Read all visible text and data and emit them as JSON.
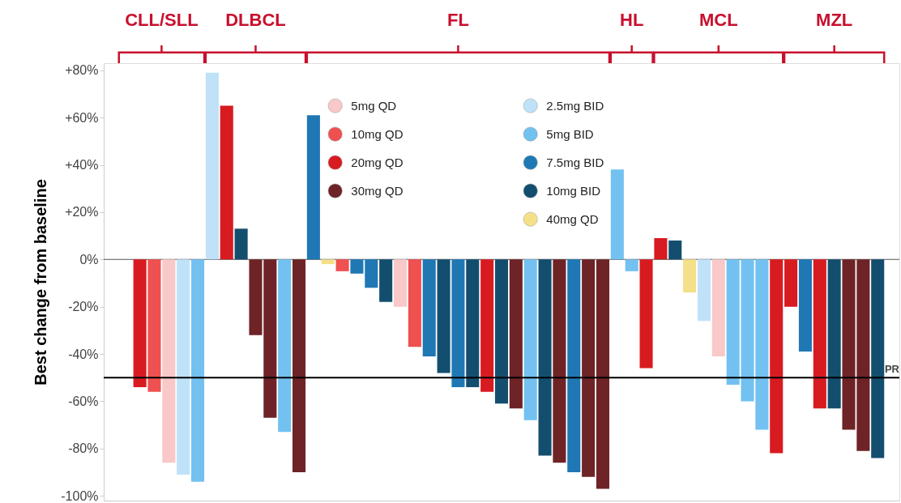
{
  "chart_data": {
    "type": "bar",
    "ylabel": "Best change from baseline",
    "categories": [
      null,
      null,
      null,
      null,
      null,
      null,
      null,
      null,
      null,
      null,
      null,
      null,
      null,
      null,
      null,
      null,
      null,
      null,
      null,
      null,
      null,
      null,
      null,
      null,
      null,
      null,
      null,
      null,
      null,
      null,
      null,
      null,
      null,
      null,
      null,
      null,
      null,
      null,
      null,
      null,
      null,
      null,
      null,
      null,
      null,
      null,
      null,
      null,
      null,
      null,
      null,
      null,
      null,
      null,
      null
    ],
    "ylim": [
      -102,
      83
    ],
    "yticks": [
      {
        "value": 80,
        "label": "+80%"
      },
      {
        "value": 60,
        "label": "+60%"
      },
      {
        "value": 40,
        "label": "+40%"
      },
      {
        "value": 20,
        "label": "+20%"
      },
      {
        "value": 0,
        "label": "0%"
      },
      {
        "value": -20,
        "label": "-20%"
      },
      {
        "value": -40,
        "label": "-40%"
      },
      {
        "value": -60,
        "label": "-60%"
      },
      {
        "value": -80,
        "label": "-80%"
      },
      {
        "value": -100,
        "label": "-100%"
      }
    ],
    "legend": "top",
    "annotations": [
      "CLL/SLL",
      "DLBCL",
      "FL",
      "HL",
      "MCL",
      "MZL"
    ],
    "ref_lines": [
      {
        "axis": "y",
        "value": -50,
        "label": "PR",
        "color": "#000000"
      }
    ],
    "series": [
      {
        "name": "5mg QD",
        "color": "#f9c8c8",
        "values": [
          null,
          null,
          null,
          null,
          -86,
          null,
          null,
          null,
          null,
          null,
          null,
          null,
          null,
          null,
          null,
          null,
          null,
          null,
          null,
          null,
          -20,
          null,
          null,
          null,
          null,
          null,
          null,
          null,
          null,
          null,
          null,
          null,
          null,
          null,
          null,
          null,
          null,
          null,
          null,
          null,
          null,
          null,
          -41,
          null,
          null,
          null,
          null,
          null,
          null,
          null,
          null,
          null,
          null,
          null,
          null
        ]
      },
      {
        "name": "10mg QD",
        "color": "#ef5050",
        "values": [
          null,
          null,
          null,
          -56,
          null,
          null,
          null,
          null,
          null,
          null,
          null,
          null,
          null,
          null,
          null,
          null,
          -5,
          null,
          null,
          null,
          null,
          -37,
          null,
          null,
          null,
          null,
          null,
          null,
          null,
          null,
          null,
          null,
          null,
          null,
          null,
          null,
          null,
          null,
          null,
          null,
          null,
          null,
          null,
          null,
          null,
          null,
          null,
          null,
          null,
          null,
          null,
          null,
          null,
          null,
          null
        ]
      },
      {
        "name": "20mg QD",
        "color": "#d81b20",
        "values": [
          null,
          null,
          -54,
          null,
          null,
          null,
          null,
          null,
          65,
          null,
          null,
          null,
          null,
          null,
          null,
          null,
          null,
          null,
          null,
          null,
          null,
          null,
          null,
          null,
          null,
          null,
          -56,
          null,
          null,
          null,
          null,
          null,
          null,
          null,
          null,
          null,
          null,
          -46,
          9,
          null,
          null,
          null,
          null,
          null,
          null,
          null,
          -82,
          -20,
          null,
          -63,
          null,
          null,
          null,
          null,
          null
        ]
      },
      {
        "name": "30mg QD",
        "color": "#6e2326",
        "values": [
          null,
          null,
          null,
          null,
          null,
          null,
          null,
          null,
          null,
          null,
          -32,
          -67,
          null,
          -90,
          null,
          null,
          null,
          null,
          null,
          null,
          null,
          null,
          null,
          null,
          null,
          null,
          null,
          null,
          -63,
          null,
          null,
          -86,
          null,
          -92,
          -97,
          null,
          null,
          null,
          null,
          null,
          null,
          null,
          null,
          null,
          null,
          null,
          null,
          null,
          null,
          null,
          null,
          -72,
          -81,
          null,
          null
        ]
      },
      {
        "name": "2.5mg BID",
        "color": "#bfe2f8",
        "values": [
          null,
          null,
          null,
          null,
          null,
          -91,
          null,
          79,
          null,
          null,
          null,
          null,
          null,
          null,
          null,
          null,
          null,
          null,
          null,
          null,
          null,
          null,
          null,
          null,
          null,
          null,
          null,
          null,
          null,
          null,
          null,
          null,
          null,
          null,
          null,
          null,
          null,
          null,
          null,
          null,
          null,
          -26,
          null,
          null,
          null,
          null,
          null,
          null,
          null,
          null,
          null,
          null,
          null,
          null,
          null
        ]
      },
      {
        "name": "5mg BID",
        "color": "#72c1f1",
        "values": [
          null,
          null,
          null,
          null,
          null,
          null,
          -94,
          null,
          null,
          null,
          null,
          null,
          -73,
          null,
          null,
          null,
          null,
          null,
          null,
          null,
          null,
          null,
          null,
          null,
          null,
          null,
          null,
          null,
          null,
          -68,
          null,
          null,
          null,
          null,
          null,
          38,
          -5,
          null,
          null,
          null,
          null,
          null,
          null,
          -53,
          -60,
          -72,
          null,
          null,
          null,
          null,
          null,
          null,
          null,
          null,
          null
        ]
      },
      {
        "name": "7.5mg BID",
        "color": "#1f78b4",
        "values": [
          null,
          null,
          null,
          null,
          null,
          null,
          null,
          null,
          null,
          null,
          null,
          null,
          null,
          null,
          61,
          null,
          null,
          -6,
          -12,
          null,
          null,
          null,
          -41,
          null,
          -54,
          null,
          null,
          null,
          null,
          null,
          null,
          null,
          -90,
          null,
          null,
          null,
          null,
          null,
          null,
          null,
          null,
          null,
          null,
          null,
          null,
          null,
          null,
          null,
          -39,
          null,
          null,
          null,
          null,
          null,
          null
        ]
      },
      {
        "name": "10mg BID",
        "color": "#134e6f",
        "values": [
          null,
          null,
          null,
          null,
          null,
          null,
          null,
          null,
          null,
          13,
          null,
          null,
          null,
          null,
          null,
          null,
          null,
          null,
          null,
          -18,
          null,
          null,
          null,
          -48,
          null,
          -54,
          null,
          -61,
          null,
          null,
          -83,
          null,
          null,
          null,
          null,
          null,
          null,
          null,
          null,
          8,
          null,
          null,
          null,
          null,
          null,
          null,
          null,
          null,
          null,
          null,
          -63,
          null,
          null,
          -84,
          null
        ]
      },
      {
        "name": "40mg QD",
        "color": "#f5e08a",
        "values": [
          null,
          null,
          null,
          null,
          null,
          null,
          null,
          null,
          null,
          null,
          null,
          null,
          null,
          null,
          null,
          -2,
          null,
          null,
          null,
          null,
          null,
          null,
          null,
          null,
          null,
          null,
          null,
          null,
          null,
          null,
          null,
          null,
          null,
          null,
          null,
          null,
          null,
          null,
          null,
          null,
          -14,
          null,
          null,
          null,
          null,
          null,
          null,
          null,
          null,
          null,
          null,
          null,
          null,
          null,
          null
        ]
      }
    ]
  }
}
